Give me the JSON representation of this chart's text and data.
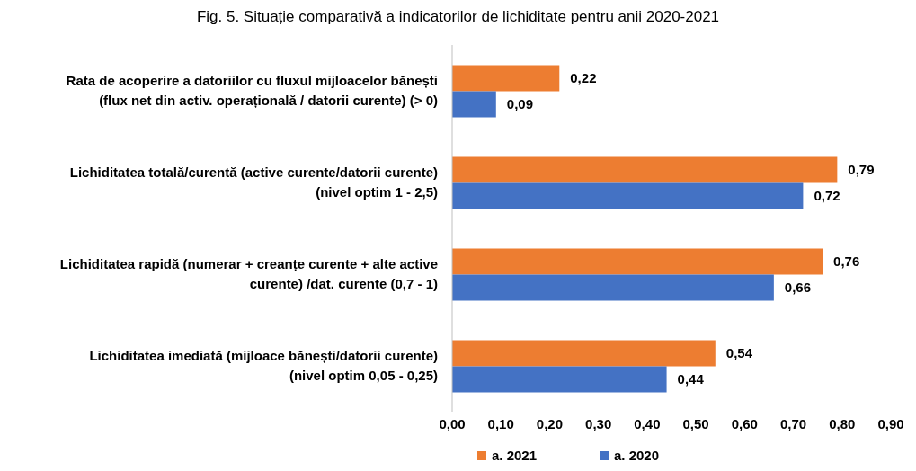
{
  "chart_data": {
    "type": "bar",
    "orientation": "horizontal",
    "title": "Fig. 5. Situație comparativă a indicatorilor de lichiditate pentru anii 2020-2021",
    "categories": [
      "Rata de acoperire a datoriilor cu fluxul mijloacelor bănești (flux net din activ. operațională / datorii curente) (> 0)",
      "Lichiditatea totală/curentă (active curente/datorii curente) (nivel optim 1 - 2,5)",
      "Lichiditatea rapidă (numerar + creanțe curente + alte active curente) /dat. curente (0,7 - 1)",
      "Lichiditatea imediată (mijloace bănești/datorii curente) (nivel optim 0,05 - 0,25)"
    ],
    "series": [
      {
        "name": "a. 2021",
        "color": "#ed7d31",
        "values": [
          0.22,
          0.79,
          0.76,
          0.54
        ],
        "value_labels": [
          "0,22",
          "0,79",
          "0,76",
          "0,54"
        ]
      },
      {
        "name": "a. 2020",
        "color": "#4472c4",
        "values": [
          0.09,
          0.72,
          0.66,
          0.44
        ],
        "value_labels": [
          "0,09",
          "0,72",
          "0,66",
          "0,44"
        ]
      }
    ],
    "xlim": [
      0,
      0.9
    ],
    "xticks": [
      {
        "value": 0,
        "label": "0,00"
      },
      {
        "value": 0.1,
        "label": "0,10"
      },
      {
        "value": 0.2,
        "label": "0,20"
      },
      {
        "value": 0.3,
        "label": "0,30"
      },
      {
        "value": 0.4,
        "label": "0,40"
      },
      {
        "value": 0.5,
        "label": "0,50"
      },
      {
        "value": 0.6,
        "label": "0,60"
      },
      {
        "value": 0.7,
        "label": "0,70"
      },
      {
        "value": 0.8,
        "label": "0,80"
      },
      {
        "value": 0.9,
        "label": "0,90"
      }
    ],
    "grid": false,
    "legend": "bottom"
  }
}
